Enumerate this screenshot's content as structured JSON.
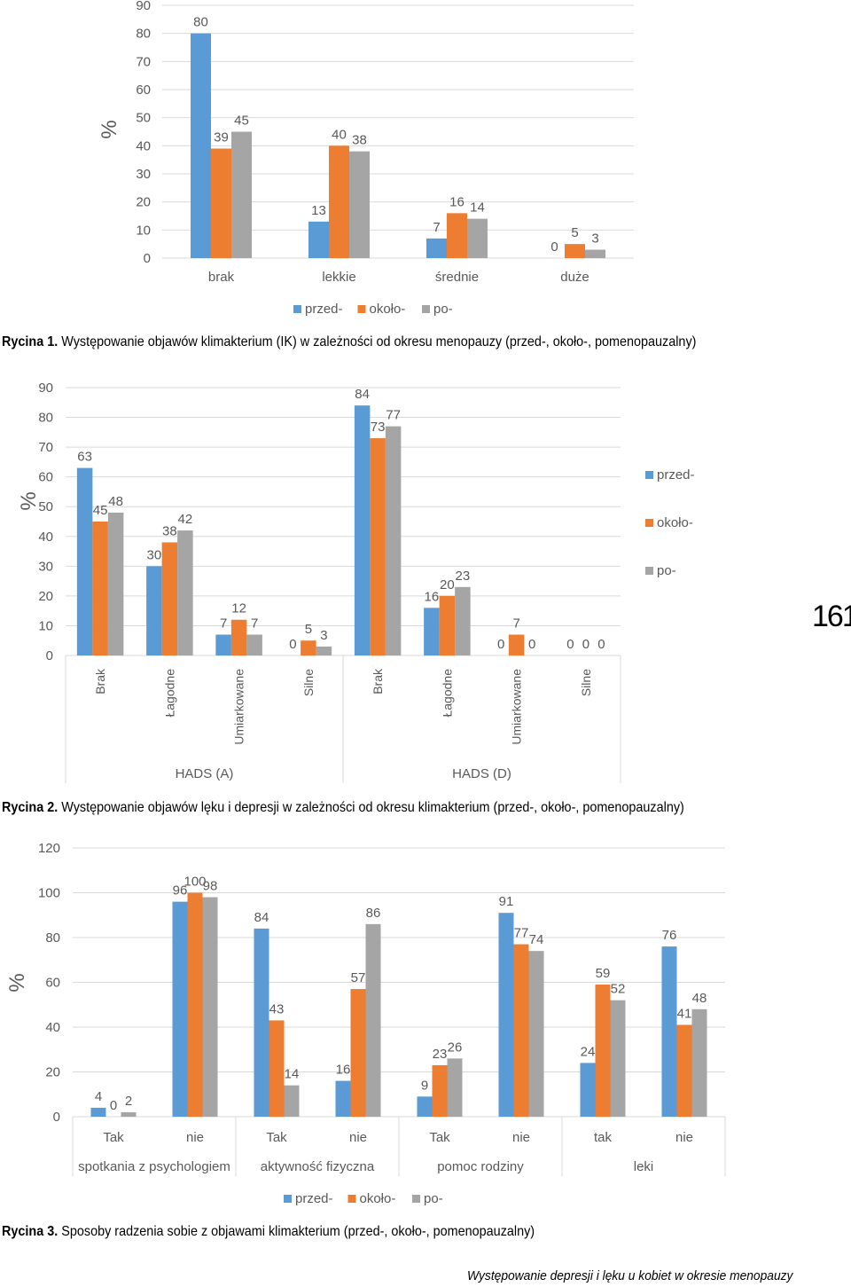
{
  "colors": {
    "series": [
      "#5b9bd5",
      "#ed7d31",
      "#a5a5a5"
    ],
    "grid": "#d9d9d9",
    "axisText": "#595959"
  },
  "chart_data": [
    {
      "type": "bar",
      "title": "",
      "ylabel": "%",
      "ylim": [
        0,
        90
      ],
      "yticks": [
        0,
        10,
        20,
        30,
        40,
        50,
        60,
        70,
        80,
        90
      ],
      "categories": [
        "brak",
        "lekkie",
        "średnie",
        "duże"
      ],
      "series": [
        {
          "name": "przed-",
          "values": [
            80,
            13,
            7,
            0
          ]
        },
        {
          "name": "około-",
          "values": [
            39,
            40,
            16,
            5
          ]
        },
        {
          "name": "po-",
          "values": [
            45,
            38,
            14,
            3
          ]
        }
      ],
      "grid": true,
      "legend": "bottom"
    },
    {
      "type": "bar",
      "title": "",
      "ylabel": "%",
      "ylim": [
        0,
        90
      ],
      "yticks": [
        0,
        10,
        20,
        30,
        40,
        50,
        60,
        70,
        80,
        90
      ],
      "groups": [
        {
          "label": "HADS (A)",
          "categories": [
            "Brak",
            "Łagodne",
            "Umiarkowane",
            "Silne"
          ]
        },
        {
          "label": "HADS (D)",
          "categories": [
            "Brak",
            "Łagodne",
            "Umiarkowane",
            "Silne"
          ]
        }
      ],
      "series": [
        {
          "name": "przed-",
          "values": [
            63,
            30,
            7,
            0,
            84,
            16,
            0,
            0
          ]
        },
        {
          "name": "około-",
          "values": [
            45,
            38,
            12,
            5,
            73,
            20,
            7,
            0
          ]
        },
        {
          "name": "po-",
          "values": [
            48,
            42,
            7,
            3,
            77,
            23,
            0,
            0
          ]
        }
      ],
      "grid": true,
      "legend": "right"
    },
    {
      "type": "bar",
      "title": "",
      "ylabel": "%",
      "ylim": [
        0,
        120
      ],
      "yticks": [
        0,
        20,
        40,
        60,
        80,
        100,
        120
      ],
      "groups": [
        {
          "label": "spotkania z psychologiem",
          "categories": [
            "Tak",
            "nie"
          ]
        },
        {
          "label": "aktywność fizyczna",
          "categories": [
            "Tak",
            "nie"
          ]
        },
        {
          "label": "pomoc rodziny",
          "categories": [
            "Tak",
            "nie"
          ]
        },
        {
          "label": "leki",
          "categories": [
            "tak",
            "nie"
          ]
        }
      ],
      "series": [
        {
          "name": "przed-",
          "values": [
            4,
            96,
            84,
            16,
            9,
            91,
            24,
            76
          ]
        },
        {
          "name": "około-",
          "values": [
            0,
            100,
            43,
            57,
            23,
            77,
            59,
            41
          ]
        },
        {
          "name": "po-",
          "values": [
            2,
            98,
            14,
            86,
            26,
            74,
            52,
            48
          ]
        }
      ],
      "grid": true,
      "legend": "bottom"
    }
  ],
  "captions": [
    {
      "label": "Rycina 1.",
      "text": "Występowanie objawów klimakterium (IK) w zależności od okresu menopauzy (przed-, około-, pomenopauzalny)"
    },
    {
      "label": "Rycina 2.",
      "text": "Występowanie objawów lęku i depresji w zależności od okresu klimakterium (przed-, około-, pomenopauzalny)"
    },
    {
      "label": "Rycina 3.",
      "text": "Sposoby radzenia sobie z objawami klimakterium (przed-, około-, pomenopauzalny)"
    }
  ],
  "page_number": "161",
  "footer": "Występowanie depresji i lęku u kobiet w okresie menopauzy"
}
